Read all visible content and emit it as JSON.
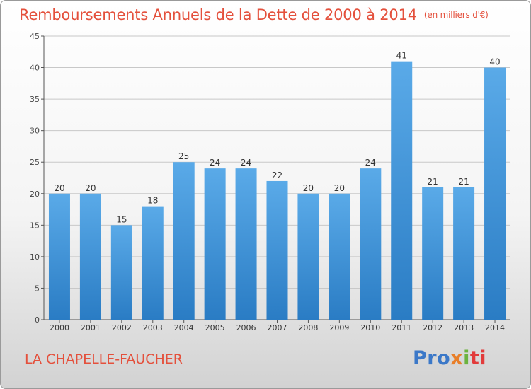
{
  "title": "Remboursements Annuels de la Dette de 2000 à 2014",
  "unit": "(en milliers d'€)",
  "place": "LA CHAPELLE-FAUCHER",
  "logo": {
    "p1": "Pro",
    "p2": "x",
    "p3": "i",
    "p4": "ti"
  },
  "colors": {
    "bar_top": "#5aaae8",
    "bar_bottom": "#2a7cc4",
    "text_accent": "#e4503c"
  },
  "chart_data": {
    "type": "bar",
    "categories": [
      "2000",
      "2001",
      "2002",
      "2003",
      "2004",
      "2005",
      "2006",
      "2007",
      "2008",
      "2009",
      "2010",
      "2011",
      "2012",
      "2013",
      "2014"
    ],
    "values": [
      20,
      20,
      15,
      18,
      25,
      24,
      24,
      22,
      20,
      20,
      24,
      41,
      21,
      21,
      40
    ],
    "title": "Remboursements Annuels de la Dette de 2000 à 2014",
    "ylim": [
      0,
      45
    ],
    "yticks": [
      0,
      5,
      10,
      15,
      20,
      25,
      30,
      35,
      40,
      45
    ],
    "grid": true
  }
}
